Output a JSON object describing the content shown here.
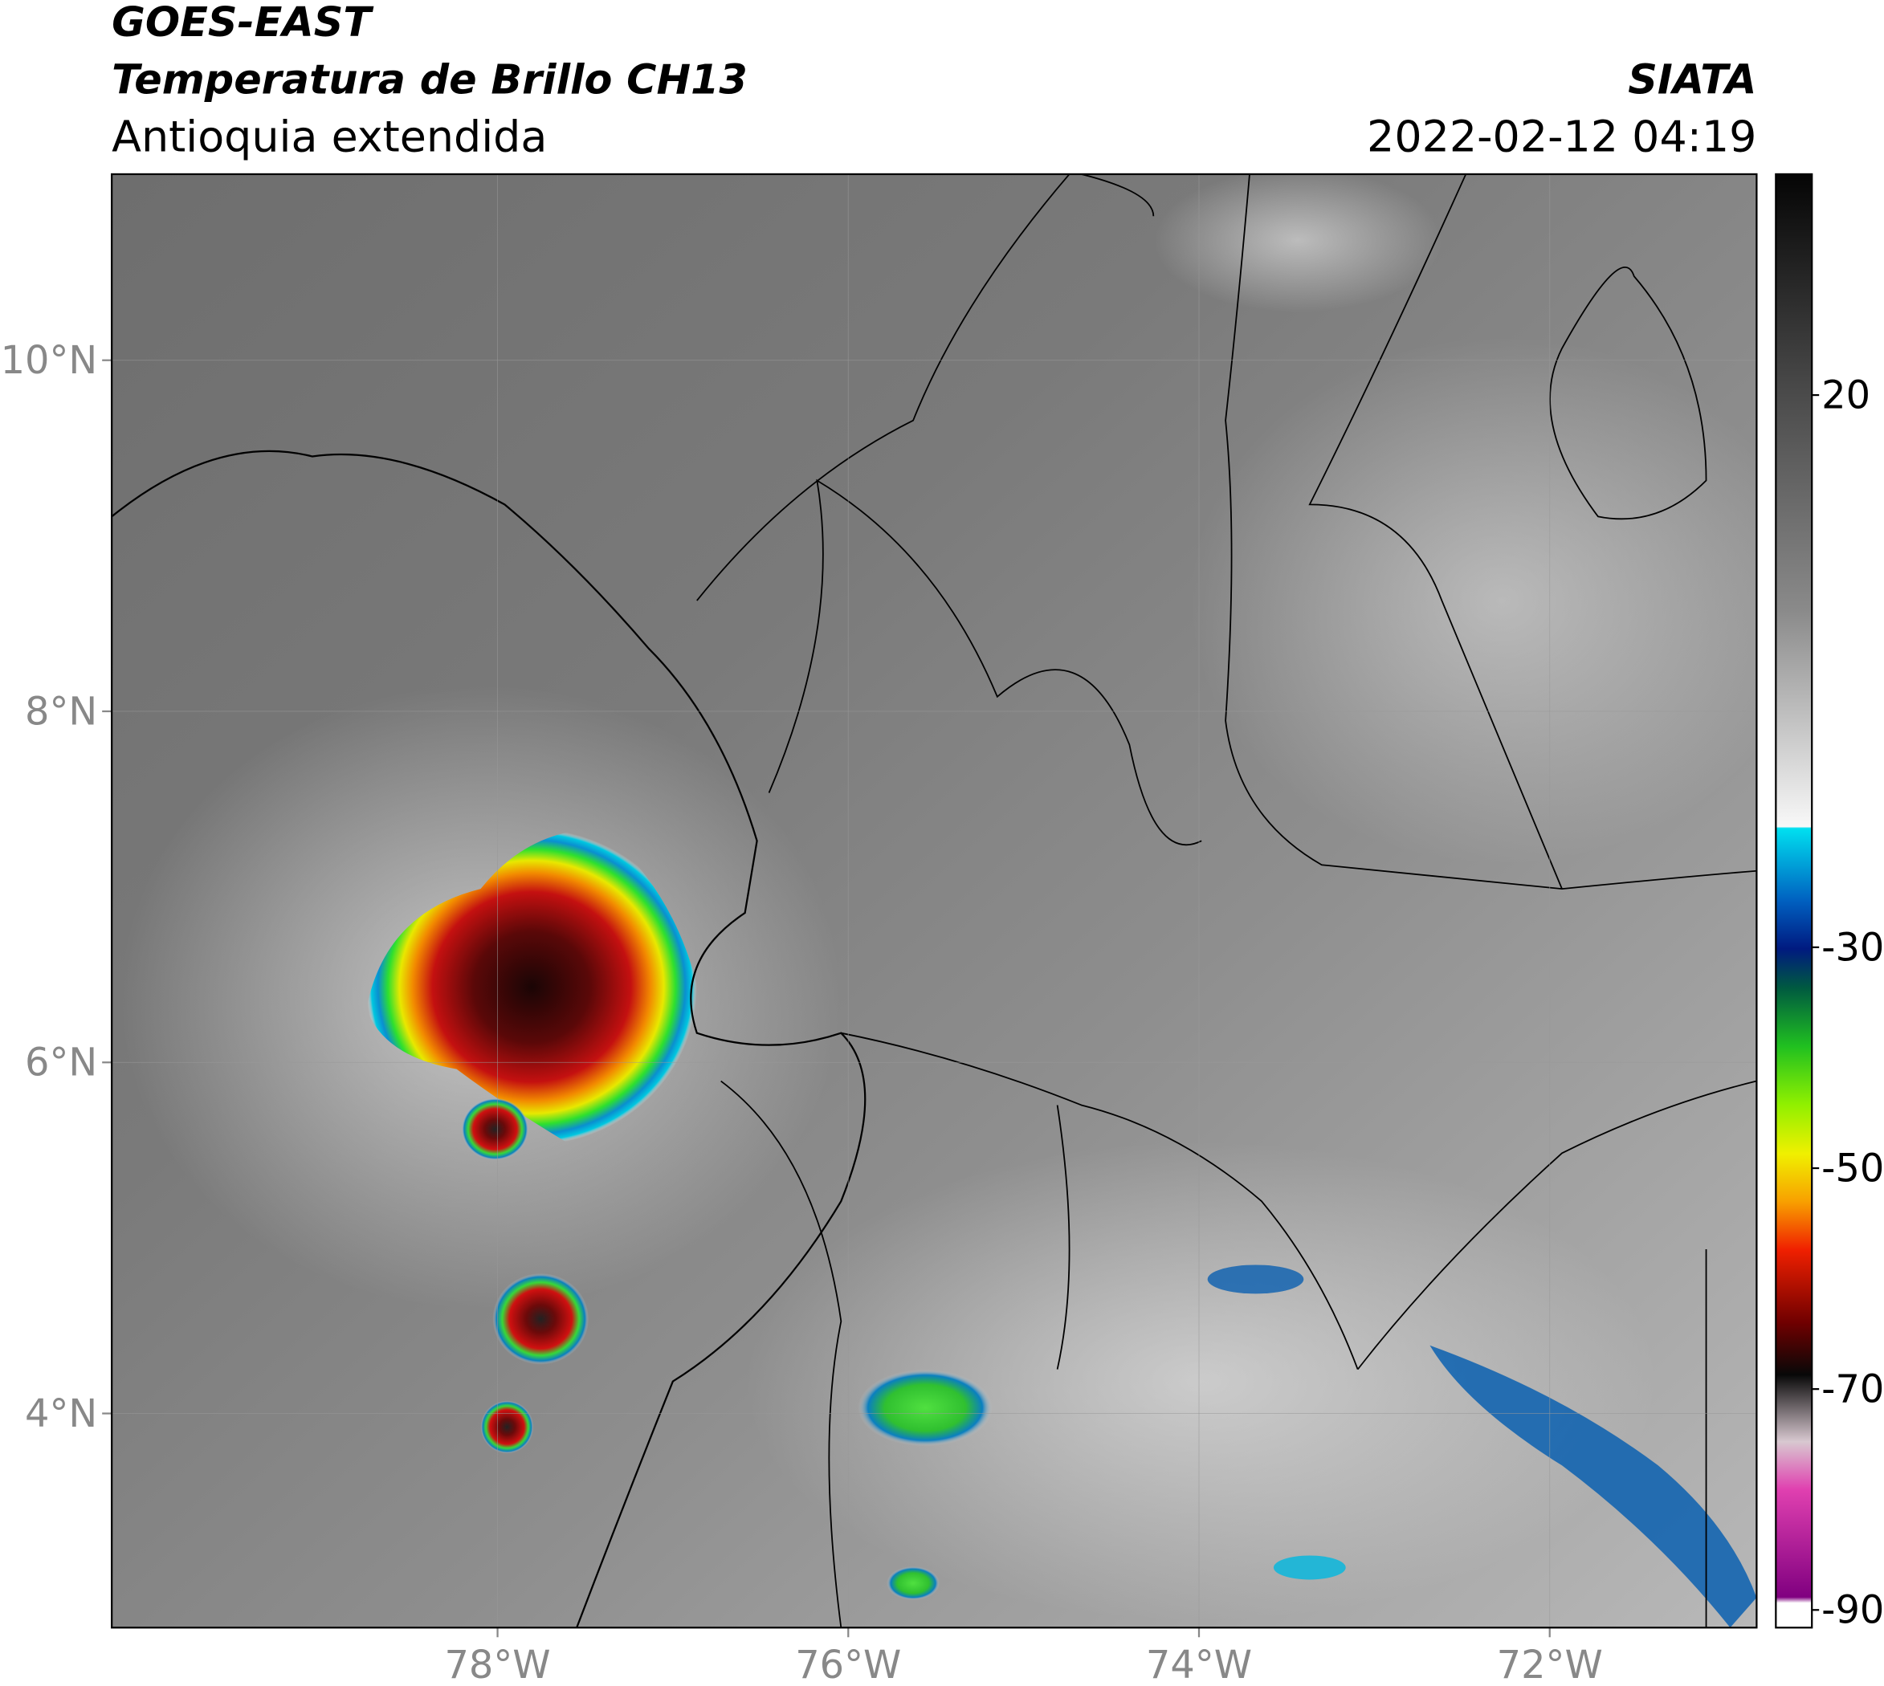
{
  "header": {
    "title": "GOES-EAST",
    "subtitle": "Temperatura de Brillo CH13",
    "region": "Antioquia extendida",
    "source": "SIATA",
    "datetime": "2022-02-12 04:19"
  },
  "map": {
    "lon_range": [
      -80.2,
      -70.82
    ],
    "lat_range": [
      2.78,
      11.06
    ],
    "lat_ticks": [
      {
        "value": 10,
        "label": "10°N"
      },
      {
        "value": 8,
        "label": "8°N"
      },
      {
        "value": 6,
        "label": "6°N"
      },
      {
        "value": 4,
        "label": "4°N"
      }
    ],
    "lon_ticks": [
      {
        "value": -78,
        "label": "78°W"
      },
      {
        "value": -76,
        "label": "76°W"
      },
      {
        "value": -74,
        "label": "74°W"
      },
      {
        "value": -72,
        "label": "72°W"
      }
    ]
  },
  "colorbar": {
    "range": [
      -91.6,
      40
    ],
    "ticks": [
      20,
      -30,
      -50,
      -70,
      -90
    ]
  }
}
